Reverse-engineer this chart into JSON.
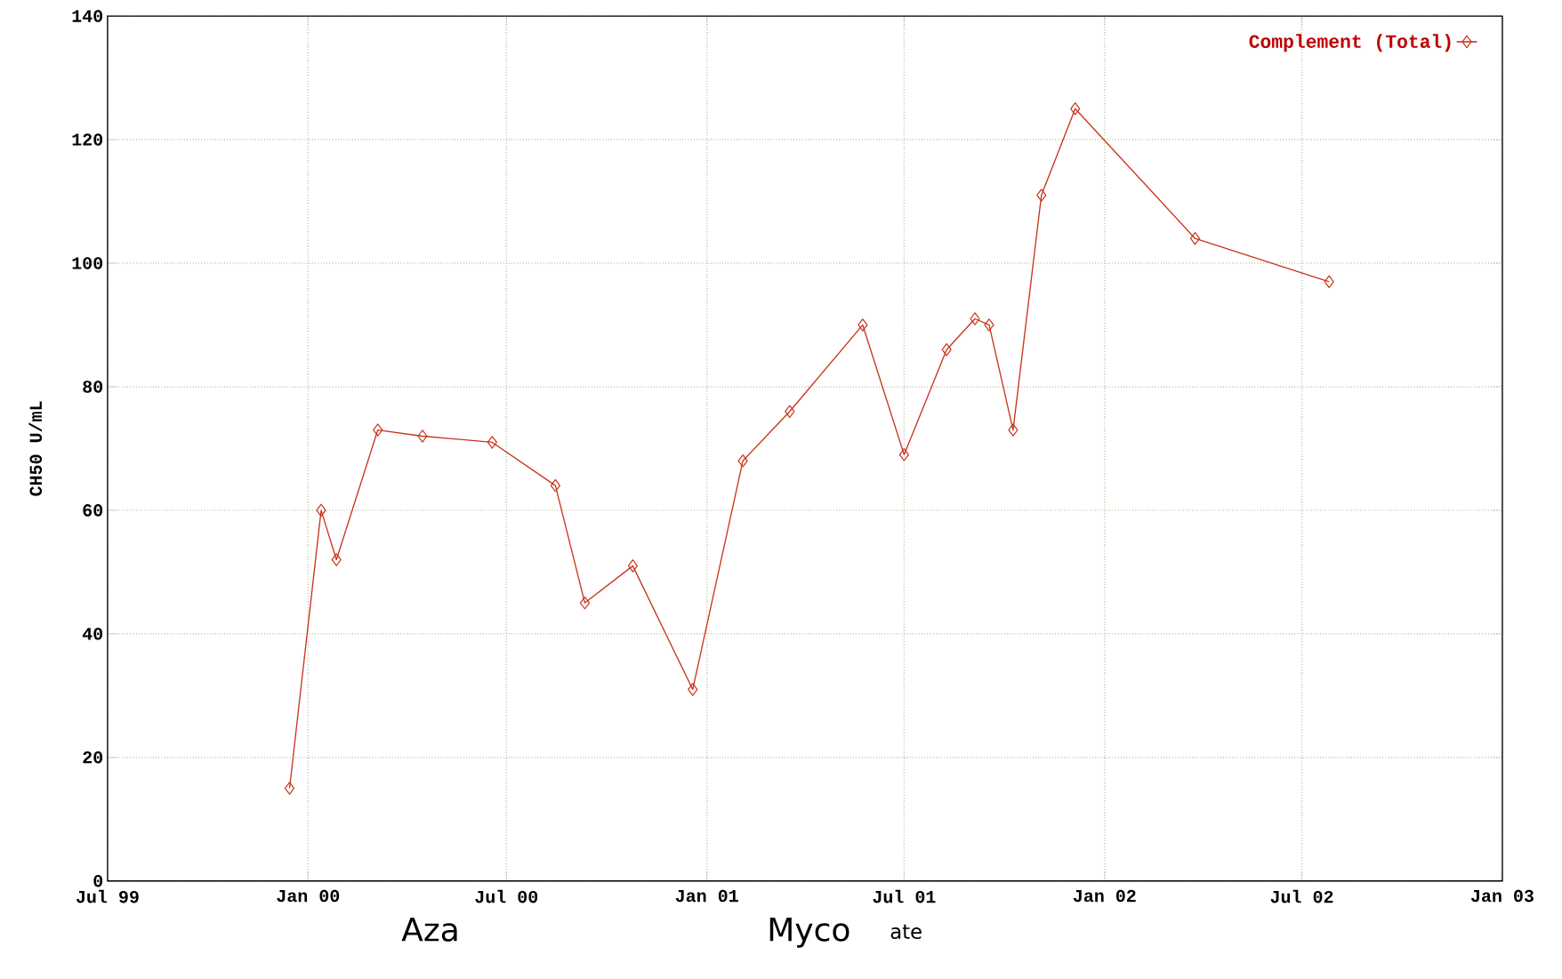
{
  "chart_data": {
    "type": "line",
    "ylabel": "CH50 U/mL",
    "x": [
      "1999-12-15",
      "2000-01-13",
      "2000-01-27",
      "2000-03-05",
      "2000-04-15",
      "2000-06-18",
      "2000-08-15",
      "2000-09-11",
      "2000-10-25",
      "2000-12-19",
      "2001-02-03",
      "2001-03-18",
      "2001-05-24",
      "2001-07-01",
      "2001-08-09",
      "2001-09-04",
      "2001-09-17",
      "2001-10-09",
      "2001-11-04",
      "2001-12-05",
      "2002-03-25",
      "2002-07-26"
    ],
    "series": [
      {
        "name": "Complement (Total)",
        "color": "#c8341c",
        "values": [
          15,
          60,
          52,
          73,
          72,
          71,
          64,
          45,
          51,
          31,
          68,
          76,
          90,
          69,
          86,
          91,
          90,
          73,
          111,
          125,
          104,
          97
        ]
      }
    ],
    "xlim": [
      "1999-07-01",
      "2003-01-01"
    ],
    "xticks": [
      {
        "value": "1999-07-01",
        "label": "Jul 99"
      },
      {
        "value": "2000-01-01",
        "label": "Jan 00"
      },
      {
        "value": "2000-07-01",
        "label": "Jul 00"
      },
      {
        "value": "2001-01-01",
        "label": "Jan 01"
      },
      {
        "value": "2001-07-01",
        "label": "Jul 01"
      },
      {
        "value": "2002-01-01",
        "label": "Jan 02"
      },
      {
        "value": "2002-07-01",
        "label": "Jul 02"
      },
      {
        "value": "2003-01-01",
        "label": "Jan 03"
      }
    ],
    "ylim": [
      0,
      140
    ],
    "yticks": [
      0,
      20,
      40,
      60,
      80,
      100,
      120,
      140
    ],
    "grid": true,
    "legend": "top right",
    "marker": "diamond",
    "line_style": "solid",
    "annotations": [
      "Aza",
      "Myco",
      "ate"
    ]
  }
}
